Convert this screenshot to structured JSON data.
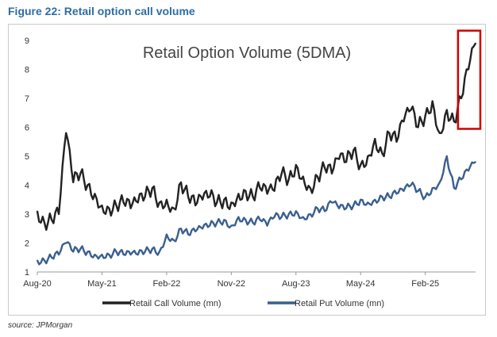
{
  "figure": {
    "title": "Figure 22: Retail option call volume",
    "source": "source: JPMorgan"
  },
  "chart_data": {
    "type": "line",
    "title": "Retail Option Volume (5DMA)",
    "xlabel": "",
    "ylabel": "",
    "ylim": [
      1,
      9
    ],
    "yticks": [
      1,
      2,
      3,
      4,
      5,
      6,
      7,
      8,
      9
    ],
    "xlim": [
      "2020-08",
      "2025-09"
    ],
    "xticks": [
      "Aug-20",
      "May-21",
      "Feb-22",
      "Nov-22",
      "Aug-23",
      "May-24",
      "Feb-25"
    ],
    "grid": false,
    "legend": "bottom",
    "highlight": {
      "type": "red-box",
      "x_from": "2025-07",
      "x_to": "2025-09",
      "y_from": 6.0,
      "y_to": 8.9
    },
    "series": [
      {
        "name": "Retail Call Volume (mn)",
        "color": "#222222",
        "x": [
          "2020-08",
          "2020-09",
          "2020-10",
          "2020-11",
          "2020-12",
          "2021-01",
          "2021-02",
          "2021-03",
          "2021-04",
          "2021-05",
          "2021-06",
          "2021-07",
          "2021-08",
          "2021-09",
          "2021-10",
          "2021-11",
          "2021-12",
          "2022-01",
          "2022-02",
          "2022-03",
          "2022-04",
          "2022-05",
          "2022-06",
          "2022-07",
          "2022-08",
          "2022-09",
          "2022-10",
          "2022-11",
          "2022-12",
          "2023-01",
          "2023-02",
          "2023-03",
          "2023-04",
          "2023-05",
          "2023-06",
          "2023-07",
          "2023-08",
          "2023-09",
          "2023-10",
          "2023-11",
          "2023-12",
          "2024-01",
          "2024-02",
          "2024-03",
          "2024-04",
          "2024-05",
          "2024-06",
          "2024-07",
          "2024-08",
          "2024-09",
          "2024-10",
          "2024-11",
          "2024-12",
          "2025-01",
          "2025-02",
          "2025-03",
          "2025-04",
          "2025-05",
          "2025-06",
          "2025-07",
          "2025-08",
          "2025-09"
        ],
        "values": [
          3.1,
          2.7,
          2.8,
          3.0,
          5.8,
          4.1,
          4.4,
          4.0,
          3.7,
          3.3,
          3.2,
          3.3,
          3.4,
          3.2,
          3.4,
          3.6,
          3.9,
          3.4,
          3.5,
          3.2,
          4.1,
          3.6,
          3.3,
          3.5,
          3.6,
          3.4,
          3.5,
          3.4,
          3.7,
          3.8,
          3.6,
          3.9,
          3.7,
          3.8,
          4.4,
          4.2,
          4.7,
          4.3,
          3.9,
          4.3,
          4.6,
          4.4,
          4.9,
          4.8,
          5.2,
          4.7,
          5.0,
          5.6,
          5.1,
          5.8,
          5.5,
          6.2,
          6.6,
          6.0,
          6.4,
          6.9,
          5.8,
          6.6,
          6.2,
          7.0,
          8.0,
          8.9
        ]
      },
      {
        "name": "Retail Put Volume (mn)",
        "color": "#3A5F8F",
        "x": [
          "2020-08",
          "2020-09",
          "2020-10",
          "2020-11",
          "2020-12",
          "2021-01",
          "2021-02",
          "2021-03",
          "2021-04",
          "2021-05",
          "2021-06",
          "2021-07",
          "2021-08",
          "2021-09",
          "2021-10",
          "2021-11",
          "2021-12",
          "2022-01",
          "2022-02",
          "2022-03",
          "2022-04",
          "2022-05",
          "2022-06",
          "2022-07",
          "2022-08",
          "2022-09",
          "2022-10",
          "2022-11",
          "2022-12",
          "2023-01",
          "2023-02",
          "2023-03",
          "2023-04",
          "2023-05",
          "2023-06",
          "2023-07",
          "2023-08",
          "2023-09",
          "2023-10",
          "2023-11",
          "2023-12",
          "2024-01",
          "2024-02",
          "2024-03",
          "2024-04",
          "2024-05",
          "2024-06",
          "2024-07",
          "2024-08",
          "2024-09",
          "2024-10",
          "2024-11",
          "2024-12",
          "2025-01",
          "2025-02",
          "2025-03",
          "2025-04",
          "2025-05",
          "2025-06",
          "2025-07",
          "2025-08",
          "2025-09"
        ],
        "values": [
          1.4,
          1.4,
          1.5,
          1.6,
          2.0,
          1.7,
          1.8,
          1.7,
          1.6,
          1.6,
          1.6,
          1.7,
          1.6,
          1.6,
          1.6,
          1.7,
          1.8,
          1.7,
          2.3,
          2.1,
          2.5,
          2.3,
          2.4,
          2.5,
          2.6,
          2.7,
          2.8,
          2.6,
          2.9,
          2.8,
          2.7,
          2.8,
          2.6,
          2.9,
          2.9,
          3.0,
          3.1,
          2.9,
          3.0,
          3.2,
          3.1,
          3.4,
          3.2,
          3.2,
          3.3,
          3.5,
          3.4,
          3.5,
          3.6,
          3.6,
          3.7,
          3.8,
          4.0,
          3.8,
          3.6,
          3.9,
          4.1,
          5.0,
          3.9,
          4.2,
          4.5,
          4.8
        ]
      }
    ]
  }
}
